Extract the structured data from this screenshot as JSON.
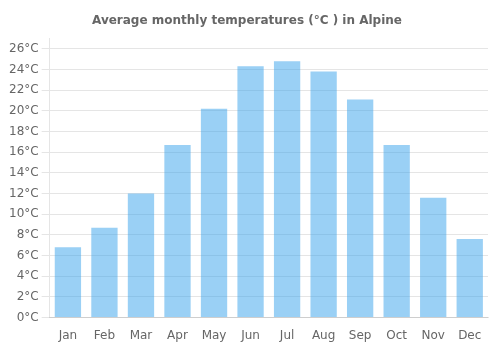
{
  "chart_data": {
    "type": "bar",
    "title": "Average monthly temperatures (°C ) in Alpine",
    "categories": [
      "Jan",
      "Feb",
      "Mar",
      "Apr",
      "May",
      "Jun",
      "Jul",
      "Aug",
      "Sep",
      "Oct",
      "Nov",
      "Dec"
    ],
    "values": [
      6.8,
      8.7,
      12.0,
      16.7,
      20.2,
      24.3,
      24.8,
      23.8,
      21.1,
      16.7,
      11.6,
      7.6
    ],
    "ylim": [
      0,
      27
    ],
    "yticks": [
      {
        "value": 0,
        "label": "0°C"
      },
      {
        "value": 2,
        "label": "2°C"
      },
      {
        "value": 4,
        "label": "4°C"
      },
      {
        "value": 6,
        "label": "6°C"
      },
      {
        "value": 8,
        "label": "8°C"
      },
      {
        "value": 10,
        "label": "10°C"
      },
      {
        "value": 12,
        "label": "12°C"
      },
      {
        "value": 14,
        "label": "14°C"
      },
      {
        "value": 16,
        "label": "16°C"
      },
      {
        "value": 18,
        "label": "18°C"
      },
      {
        "value": 20,
        "label": "20°C"
      },
      {
        "value": 22,
        "label": "22°C"
      },
      {
        "value": 24,
        "label": "24°C"
      },
      {
        "value": 26,
        "label": "26°C"
      }
    ],
    "grid": true
  }
}
